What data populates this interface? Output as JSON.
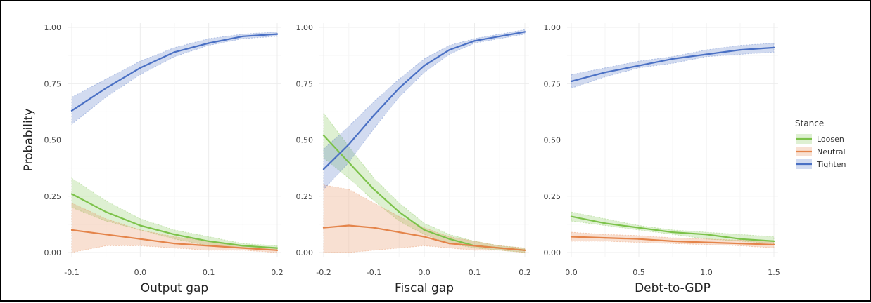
{
  "figure": {
    "ylabel": "Probability",
    "legend": {
      "title": "Stance",
      "items": [
        {
          "label": "Loosen",
          "color": "#7CC24A"
        },
        {
          "label": "Neutral",
          "color": "#E4844A"
        },
        {
          "label": "Tighten",
          "color": "#4A70C4"
        }
      ]
    }
  },
  "chart_data": [
    {
      "type": "line",
      "xlabel": "Output gap",
      "ylabel": "Probability",
      "xlim": [
        -0.1,
        0.2
      ],
      "ylim": [
        0,
        1
      ],
      "x_ticks": [
        "-0.1",
        "0.0",
        "0.1",
        "0.2"
      ],
      "y_ticks": [
        "0.00",
        "0.25",
        "0.50",
        "0.75",
        "1.00"
      ],
      "x": [
        -0.1,
        -0.05,
        0.0,
        0.05,
        0.1,
        0.15,
        0.2
      ],
      "series": [
        {
          "name": "Loosen",
          "values": [
            0.26,
            0.18,
            0.12,
            0.08,
            0.05,
            0.03,
            0.02
          ],
          "lower": [
            0.2,
            0.14,
            0.1,
            0.06,
            0.03,
            0.02,
            0.01
          ],
          "upper": [
            0.33,
            0.23,
            0.15,
            0.1,
            0.07,
            0.04,
            0.03
          ]
        },
        {
          "name": "Neutral",
          "values": [
            0.1,
            0.08,
            0.06,
            0.04,
            0.03,
            0.02,
            0.01
          ],
          "lower": [
            0.0,
            0.03,
            0.03,
            0.02,
            0.01,
            0.01,
            0.0
          ],
          "upper": [
            0.22,
            0.15,
            0.1,
            0.07,
            0.05,
            0.03,
            0.02
          ]
        },
        {
          "name": "Tighten",
          "values": [
            0.63,
            0.73,
            0.82,
            0.89,
            0.93,
            0.96,
            0.97
          ],
          "lower": [
            0.57,
            0.69,
            0.79,
            0.87,
            0.92,
            0.95,
            0.96
          ],
          "upper": [
            0.69,
            0.77,
            0.85,
            0.91,
            0.95,
            0.97,
            0.98
          ]
        }
      ]
    },
    {
      "type": "line",
      "xlabel": "Fiscal gap",
      "ylabel": "",
      "xlim": [
        -0.2,
        0.2
      ],
      "ylim": [
        0,
        1
      ],
      "x_ticks": [
        "-0.2",
        "-0.1",
        "0.0",
        "0.1",
        "0.2"
      ],
      "y_ticks": [
        "0.00",
        "0.25",
        "0.50",
        "0.75",
        "1.00"
      ],
      "x": [
        -0.2,
        -0.15,
        -0.1,
        -0.05,
        0.0,
        0.05,
        0.1,
        0.15,
        0.2
      ],
      "series": [
        {
          "name": "Loosen",
          "values": [
            0.52,
            0.4,
            0.28,
            0.18,
            0.1,
            0.06,
            0.03,
            0.02,
            0.01
          ],
          "lower": [
            0.42,
            0.33,
            0.23,
            0.14,
            0.08,
            0.04,
            0.02,
            0.01,
            0.0
          ],
          "upper": [
            0.62,
            0.47,
            0.33,
            0.22,
            0.13,
            0.08,
            0.05,
            0.03,
            0.02
          ]
        },
        {
          "name": "Neutral",
          "values": [
            0.11,
            0.12,
            0.11,
            0.09,
            0.07,
            0.04,
            0.03,
            0.02,
            0.01
          ],
          "lower": [
            0.0,
            0.0,
            0.01,
            0.02,
            0.03,
            0.02,
            0.01,
            0.01,
            0.0
          ],
          "upper": [
            0.3,
            0.28,
            0.22,
            0.16,
            0.11,
            0.07,
            0.05,
            0.03,
            0.02
          ]
        },
        {
          "name": "Tighten",
          "values": [
            0.37,
            0.48,
            0.61,
            0.73,
            0.83,
            0.9,
            0.94,
            0.96,
            0.98
          ],
          "lower": [
            0.28,
            0.4,
            0.55,
            0.69,
            0.8,
            0.88,
            0.93,
            0.95,
            0.97
          ],
          "upper": [
            0.46,
            0.56,
            0.67,
            0.77,
            0.86,
            0.92,
            0.95,
            0.97,
            0.99
          ]
        }
      ]
    },
    {
      "type": "line",
      "xlabel": "Debt-to-GDP",
      "ylabel": "",
      "xlim": [
        0,
        1.5
      ],
      "ylim": [
        0,
        1
      ],
      "x_ticks": [
        "0.0",
        "0.5",
        "1.0",
        "1.5"
      ],
      "y_ticks": [
        "0.00",
        "0.25",
        "0.50",
        "0.75",
        "1.00"
      ],
      "x": [
        0.0,
        0.25,
        0.5,
        0.75,
        1.0,
        1.25,
        1.5
      ],
      "series": [
        {
          "name": "Loosen",
          "values": [
            0.16,
            0.13,
            0.11,
            0.09,
            0.08,
            0.06,
            0.05
          ],
          "lower": [
            0.14,
            0.12,
            0.1,
            0.08,
            0.06,
            0.05,
            0.04
          ],
          "upper": [
            0.18,
            0.15,
            0.12,
            0.1,
            0.09,
            0.08,
            0.07
          ]
        },
        {
          "name": "Neutral",
          "values": [
            0.07,
            0.065,
            0.06,
            0.05,
            0.045,
            0.04,
            0.035
          ],
          "lower": [
            0.05,
            0.05,
            0.045,
            0.04,
            0.035,
            0.03,
            0.02
          ],
          "upper": [
            0.09,
            0.08,
            0.075,
            0.065,
            0.06,
            0.055,
            0.05
          ]
        },
        {
          "name": "Tighten",
          "values": [
            0.76,
            0.8,
            0.83,
            0.86,
            0.88,
            0.9,
            0.91
          ],
          "lower": [
            0.73,
            0.78,
            0.82,
            0.84,
            0.87,
            0.88,
            0.89
          ],
          "upper": [
            0.79,
            0.82,
            0.85,
            0.87,
            0.9,
            0.92,
            0.93
          ]
        }
      ]
    }
  ]
}
